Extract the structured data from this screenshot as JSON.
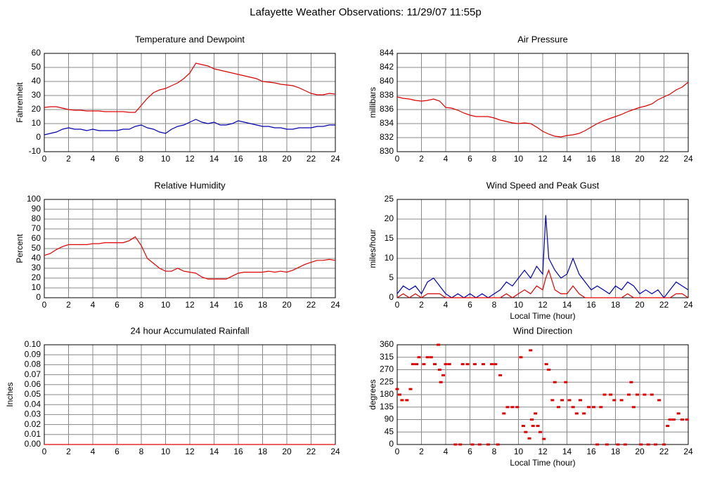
{
  "title": "Lafayette Weather Observations: 11/29/07 11:55p",
  "chart_data": [
    {
      "type": "line",
      "title": "Temperature and Dewpoint",
      "ylabel": "Fahrenheit",
      "xlim": [
        0,
        24
      ],
      "xticks": [
        0,
        2,
        4,
        6,
        8,
        10,
        12,
        14,
        16,
        18,
        20,
        22,
        24
      ],
      "ylim": [
        -10,
        60
      ],
      "yticks": [
        -10,
        0,
        10,
        20,
        30,
        40,
        50,
        60
      ],
      "grid": true,
      "x": [
        0,
        0.5,
        1,
        1.5,
        2,
        2.5,
        3,
        3.5,
        4,
        4.5,
        5,
        5.5,
        6,
        6.5,
        7,
        7.5,
        8,
        8.5,
        9,
        9.5,
        10,
        10.5,
        11,
        11.5,
        12,
        12.5,
        13,
        13.5,
        14,
        14.5,
        15,
        15.5,
        16,
        16.5,
        17,
        17.5,
        18,
        18.5,
        19,
        19.5,
        20,
        20.5,
        21,
        21.5,
        22,
        22.5,
        23,
        23.5,
        24
      ],
      "series": [
        {
          "color": "#e00000",
          "values": [
            21.5,
            22,
            22,
            21,
            20,
            19.5,
            19.5,
            19,
            19,
            19,
            18.5,
            18.5,
            18.5,
            18.5,
            18,
            18,
            23,
            28,
            32,
            34,
            35,
            37,
            39,
            42,
            46,
            53,
            52,
            51,
            49,
            48,
            47,
            46,
            45,
            44,
            43,
            42,
            40,
            39.5,
            39,
            38,
            37.5,
            37,
            35.5,
            33.5,
            31.5,
            30.5,
            30.5,
            31.5,
            31
          ]
        },
        {
          "color": "#0000b0",
          "values": [
            2,
            3,
            4,
            6,
            7,
            6,
            6,
            5,
            6,
            5,
            5,
            5,
            5,
            6,
            6,
            8,
            9,
            7,
            6,
            4,
            3,
            6,
            8,
            9,
            11,
            13,
            11,
            10,
            11,
            9,
            9,
            10,
            12,
            11,
            10,
            9,
            8,
            8,
            7,
            7,
            6,
            6,
            7,
            7,
            7,
            8,
            8,
            9,
            9
          ]
        }
      ]
    },
    {
      "type": "line",
      "title": "Air Pressure",
      "ylabel": "millibars",
      "xlim": [
        0,
        24
      ],
      "xticks": [
        0,
        2,
        4,
        6,
        8,
        10,
        12,
        14,
        16,
        18,
        20,
        22,
        24
      ],
      "ylim": [
        830,
        844
      ],
      "yticks": [
        830,
        832,
        834,
        836,
        838,
        840,
        842,
        844
      ],
      "grid": true,
      "x": [
        0,
        0.5,
        1,
        1.5,
        2,
        2.5,
        3,
        3.5,
        4,
        4.5,
        5,
        5.5,
        6,
        6.5,
        7,
        7.5,
        8,
        8.5,
        9,
        9.5,
        10,
        10.5,
        11,
        11.5,
        12,
        12.5,
        13,
        13.5,
        14,
        14.5,
        15,
        15.5,
        16,
        16.5,
        17,
        17.5,
        18,
        18.5,
        19,
        19.5,
        20,
        20.5,
        21,
        21.5,
        22,
        22.5,
        23,
        23.5,
        24
      ],
      "series": [
        {
          "color": "#e00000",
          "values": [
            837.8,
            837.6,
            837.5,
            837.3,
            837.2,
            837.3,
            837.5,
            837.2,
            836.3,
            836.2,
            835.9,
            835.5,
            835.2,
            835,
            835,
            835,
            834.8,
            834.5,
            834.3,
            834.1,
            834,
            834.1,
            834,
            833.5,
            832.9,
            832.5,
            832.2,
            832.1,
            832.3,
            832.4,
            832.6,
            833,
            833.5,
            834,
            834.4,
            834.7,
            835,
            835.3,
            835.7,
            836,
            836.3,
            836.5,
            836.8,
            837.4,
            837.8,
            838.2,
            838.8,
            839.2,
            839.9
          ]
        }
      ]
    },
    {
      "type": "line",
      "title": "Relative Humidity",
      "ylabel": "Percent",
      "xlim": [
        0,
        24
      ],
      "xticks": [
        0,
        2,
        4,
        6,
        8,
        10,
        12,
        14,
        16,
        18,
        20,
        22,
        24
      ],
      "ylim": [
        0,
        100
      ],
      "yticks": [
        0,
        10,
        20,
        30,
        40,
        50,
        60,
        70,
        80,
        90,
        100
      ],
      "grid": true,
      "x": [
        0,
        0.5,
        1,
        1.5,
        2,
        2.5,
        3,
        3.5,
        4,
        4.5,
        5,
        5.5,
        6,
        6.5,
        7,
        7.5,
        8,
        8.5,
        9,
        9.5,
        10,
        10.5,
        11,
        11.5,
        12,
        12.5,
        13,
        13.5,
        14,
        14.5,
        15,
        15.5,
        16,
        16.5,
        17,
        17.5,
        18,
        18.5,
        19,
        19.5,
        20,
        20.5,
        21,
        21.5,
        22,
        22.5,
        23,
        23.5,
        24
      ],
      "series": [
        {
          "color": "#e00000",
          "values": [
            43,
            45,
            49,
            52,
            54,
            54,
            54,
            54,
            55,
            55,
            56,
            56,
            56,
            56,
            58,
            62,
            53,
            40,
            35,
            30,
            27,
            27,
            30,
            27,
            26,
            25,
            21,
            19,
            19,
            19,
            19,
            22,
            25,
            26,
            26,
            26,
            26,
            27,
            26,
            27,
            26,
            28,
            31,
            34,
            36,
            38,
            38,
            39,
            38
          ]
        }
      ]
    },
    {
      "type": "line",
      "title": "Wind Speed and Peak Gust",
      "ylabel": "miles/hour",
      "xlabel": "Local Time (hour)",
      "xlim": [
        0,
        24
      ],
      "xticks": [
        0,
        2,
        4,
        6,
        8,
        10,
        12,
        14,
        16,
        18,
        20,
        22,
        24
      ],
      "ylim": [
        0,
        25
      ],
      "yticks": [
        0,
        5,
        10,
        15,
        20,
        25
      ],
      "grid": true,
      "x": [
        0,
        0.5,
        1,
        1.5,
        2,
        2.5,
        3,
        3.5,
        4,
        4.5,
        5,
        5.5,
        6,
        6.5,
        7,
        7.5,
        8,
        8.5,
        9,
        9.5,
        10,
        10.5,
        11,
        11.5,
        12,
        12.25,
        12.5,
        13,
        13.5,
        14,
        14.5,
        15,
        15.5,
        16,
        16.5,
        17,
        17.5,
        18,
        18.5,
        19,
        19.5,
        20,
        20.5,
        21,
        21.5,
        22,
        22.5,
        23,
        23.5,
        24
      ],
      "series": [
        {
          "color": "#0000b0",
          "values": [
            1,
            3,
            2,
            3,
            1,
            4,
            5,
            3,
            1,
            0,
            1,
            0,
            1,
            0,
            1,
            0,
            1,
            2,
            4,
            3,
            5,
            7,
            5,
            8,
            6,
            21,
            10,
            7,
            5,
            6,
            10,
            6,
            4,
            2,
            3,
            2,
            1,
            3,
            2,
            4,
            3,
            1,
            2,
            1,
            2,
            0,
            2,
            4,
            3,
            2
          ]
        },
        {
          "color": "#e00000",
          "values": [
            0,
            1,
            0,
            1,
            0,
            1,
            1,
            1,
            0,
            0,
            0,
            0,
            0,
            0,
            0,
            0,
            0,
            0,
            1,
            0,
            1,
            2,
            1,
            3,
            2,
            5,
            7,
            2,
            1,
            1,
            3,
            1,
            0,
            0,
            0,
            0,
            0,
            0,
            0,
            1,
            0,
            0,
            0,
            0,
            0,
            0,
            0,
            1,
            1,
            0
          ]
        }
      ]
    },
    {
      "type": "line",
      "title": "24 hour Accumulated Rainfall",
      "ylabel": "Inches",
      "xlim": [
        0,
        24
      ],
      "xticks": [
        0,
        2,
        4,
        6,
        8,
        10,
        12,
        14,
        16,
        18,
        20,
        22,
        24
      ],
      "ylim": [
        0,
        0.1
      ],
      "yticks": [
        {
          "value": 0,
          "label": "0.00"
        },
        {
          "value": 0.01,
          "label": "0.01"
        },
        {
          "value": 0.02,
          "label": "0.02"
        },
        {
          "value": 0.03,
          "label": "0.03"
        },
        {
          "value": 0.04,
          "label": "0.04"
        },
        {
          "value": 0.05,
          "label": "0.05"
        },
        {
          "value": 0.06,
          "label": "0.06"
        },
        {
          "value": 0.07,
          "label": "0.07"
        },
        {
          "value": 0.08,
          "label": "0.08"
        },
        {
          "value": 0.09,
          "label": "0.09"
        },
        {
          "value": 0.1,
          "label": "0.10"
        }
      ],
      "grid": true,
      "x": [
        0,
        24
      ],
      "series": [
        {
          "color": "#e00000",
          "values": [
            0,
            0
          ]
        }
      ]
    },
    {
      "type": "scatter",
      "title": "Wind Direction",
      "ylabel": "degrees",
      "xlabel": "Local Time (hour)",
      "xlim": [
        0,
        24
      ],
      "xticks": [
        0,
        2,
        4,
        6,
        8,
        10,
        12,
        14,
        16,
        18,
        20,
        22,
        24
      ],
      "ylim": [
        0,
        360
      ],
      "yticks": [
        0,
        45,
        90,
        135,
        180,
        225,
        270,
        315,
        360
      ],
      "grid": true,
      "color": "#e00000",
      "x": [
        0,
        0.2,
        0.4,
        0.8,
        1.1,
        1.3,
        1.6,
        1.8,
        2.2,
        2.5,
        2.8,
        3.1,
        3.4,
        3.5,
        3.6,
        3.8,
        4,
        4.3,
        4.8,
        5.2,
        5.4,
        5.8,
        6.2,
        6.4,
        6.8,
        7.1,
        7.5,
        7.8,
        8.1,
        8.3,
        8.5,
        8.8,
        9.1,
        9.5,
        9.9,
        10.2,
        10.4,
        10.6,
        10.9,
        11,
        11.1,
        11.2,
        11.4,
        11.6,
        11.8,
        12.1,
        12.3,
        12.5,
        12.8,
        13,
        13.3,
        13.6,
        13.9,
        14.2,
        14.5,
        14.8,
        15.1,
        15.4,
        15.8,
        16.2,
        16.5,
        16.8,
        17.1,
        17.3,
        17.6,
        17.9,
        18.2,
        18.5,
        18.8,
        19.1,
        19.3,
        19.5,
        19.8,
        20.1,
        20.4,
        20.7,
        21,
        21.3,
        21.6,
        22,
        22.3,
        22.5,
        22.8,
        23.2,
        23.5,
        23.9
      ],
      "values": [
        200,
        180,
        160,
        160,
        200,
        290,
        290,
        315,
        290,
        315,
        315,
        290,
        360,
        270,
        225,
        250,
        290,
        290,
        0,
        0,
        290,
        290,
        0,
        290,
        0,
        290,
        0,
        290,
        290,
        0,
        250,
        112,
        135,
        135,
        135,
        315,
        67,
        45,
        22,
        340,
        90,
        67,
        112,
        67,
        45,
        20,
        290,
        270,
        160,
        225,
        135,
        160,
        225,
        160,
        135,
        112,
        160,
        112,
        135,
        135,
        0,
        135,
        180,
        0,
        180,
        160,
        0,
        160,
        0,
        180,
        225,
        135,
        180,
        0,
        180,
        0,
        180,
        0,
        160,
        0,
        67,
        90,
        90,
        112,
        90,
        90
      ]
    }
  ]
}
